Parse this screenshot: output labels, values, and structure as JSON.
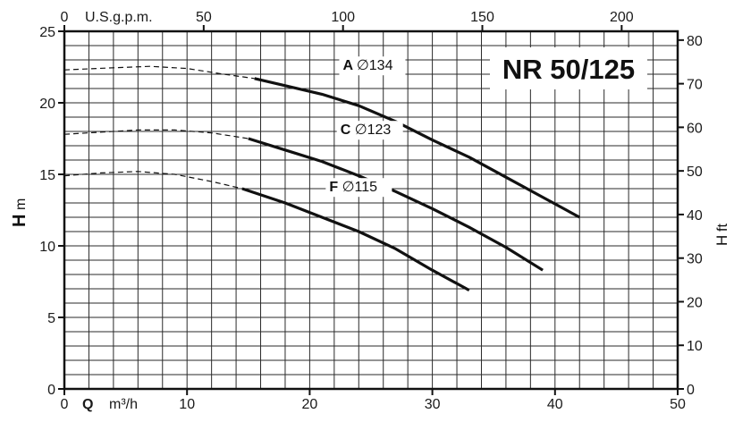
{
  "chart_data": {
    "type": "line",
    "title": "NR 50/125",
    "x_top_label": "U.S.g.p.m.",
    "x_top_ticks": [
      0,
      50,
      100,
      150,
      200
    ],
    "x_top_range": [
      0,
      220.1
    ],
    "x_bottom_label": {
      "q": "Q",
      "unit": "m³/h"
    },
    "x_bottom_ticks": [
      0,
      10,
      20,
      30,
      40,
      50
    ],
    "xlim": [
      0,
      50
    ],
    "y_left_label": {
      "h": "H",
      "unit": "m"
    },
    "y_left_ticks": [
      0,
      5,
      10,
      15,
      20,
      25
    ],
    "ylim": [
      0,
      25
    ],
    "y_right_label": {
      "h": "H",
      "unit": "ft"
    },
    "y_right_ticks": [
      0,
      10,
      20,
      30,
      40,
      50,
      60,
      70,
      80
    ],
    "y_right_range": [
      0,
      82.02
    ],
    "grid": true,
    "series": [
      {
        "name": "A ∅134",
        "dashed": [
          [
            0,
            22.3
          ],
          [
            4,
            22.45
          ],
          [
            7,
            22.55
          ],
          [
            10,
            22.4
          ],
          [
            13,
            22.0
          ],
          [
            15.5,
            21.7
          ]
        ],
        "solid": [
          [
            15.5,
            21.7
          ],
          [
            18,
            21.2
          ],
          [
            21,
            20.6
          ],
          [
            24,
            19.8
          ],
          [
            27,
            18.7
          ],
          [
            30,
            17.4
          ],
          [
            33,
            16.2
          ],
          [
            36,
            14.8
          ],
          [
            39,
            13.4
          ],
          [
            42,
            12.0
          ]
        ]
      },
      {
        "name": "C ∅123",
        "dashed": [
          [
            0,
            17.8
          ],
          [
            3,
            17.95
          ],
          [
            6,
            18.1
          ],
          [
            9,
            18.1
          ],
          [
            12,
            17.9
          ],
          [
            15,
            17.5
          ]
        ],
        "solid": [
          [
            15,
            17.5
          ],
          [
            18,
            16.7
          ],
          [
            21,
            15.9
          ],
          [
            24,
            14.9
          ],
          [
            27,
            13.8
          ],
          [
            30,
            12.6
          ],
          [
            33,
            11.3
          ],
          [
            36,
            9.9
          ],
          [
            39,
            8.3
          ]
        ]
      },
      {
        "name": "F ∅115",
        "dashed": [
          [
            0,
            14.9
          ],
          [
            3,
            15.1
          ],
          [
            6,
            15.2
          ],
          [
            9,
            15.0
          ],
          [
            12,
            14.5
          ],
          [
            14.5,
            14.0
          ]
        ],
        "solid": [
          [
            14.5,
            14.0
          ],
          [
            18,
            13.0
          ],
          [
            21,
            12.0
          ],
          [
            24,
            11.0
          ],
          [
            27,
            9.8
          ],
          [
            30,
            8.3
          ],
          [
            33,
            6.9
          ]
        ]
      }
    ]
  }
}
